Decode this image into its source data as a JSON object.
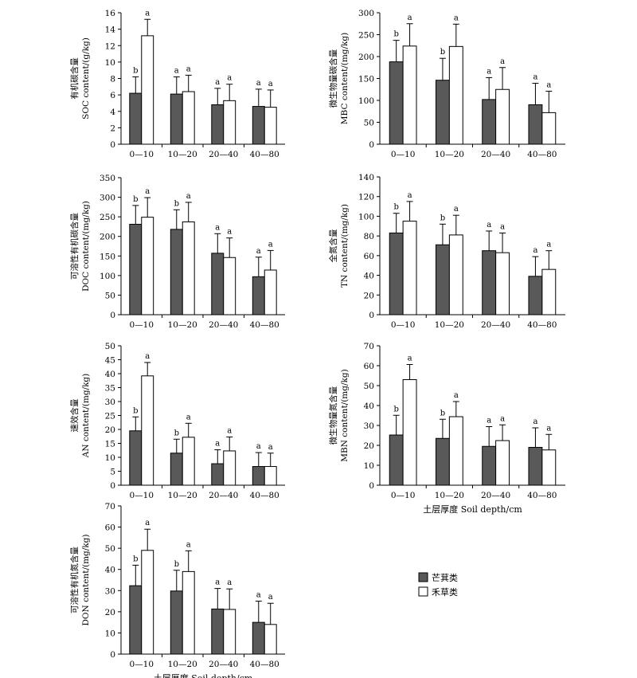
{
  "colors": {
    "dark": "#595959",
    "light": "#ffffff",
    "stroke": "#000000"
  },
  "legend": [
    {
      "label": "芒萁类",
      "color": "#595959"
    },
    {
      "label": "禾草类",
      "color": "#ffffff"
    }
  ],
  "chart_data": [
    {
      "type": "bar",
      "ylabel_cn": "有机碳含量",
      "ylabel_en": "SOC content/(g/kg)",
      "xlabel": "",
      "ylim": [
        0,
        16
      ],
      "yticks": [
        0,
        2,
        4,
        6,
        8,
        10,
        12,
        14,
        16
      ],
      "categories": [
        "0—10",
        "10—20",
        "20—40",
        "40—80"
      ],
      "series": [
        {
          "name": "芒萁类",
          "values": [
            6.2,
            6.1,
            4.8,
            4.6
          ],
          "errors": [
            2.0,
            2.1,
            2.0,
            2.1
          ],
          "letters": [
            "b",
            "a",
            "a",
            "a"
          ]
        },
        {
          "name": "禾草类",
          "values": [
            13.2,
            6.4,
            5.3,
            4.5
          ],
          "errors": [
            2.0,
            2.0,
            2.0,
            2.1
          ],
          "letters": [
            "a",
            "a",
            "a",
            "a"
          ]
        }
      ]
    },
    {
      "type": "bar",
      "ylabel_cn": "微生物量碳含量",
      "ylabel_en": "MBC content/(mg/kg)",
      "xlabel": "",
      "ylim": [
        0,
        300
      ],
      "yticks": [
        0,
        50,
        100,
        150,
        200,
        250,
        300
      ],
      "categories": [
        "0—10",
        "10—20",
        "20—40",
        "40—80"
      ],
      "series": [
        {
          "name": "芒萁类",
          "values": [
            188,
            146,
            102,
            90
          ],
          "errors": [
            49,
            50,
            50,
            49
          ],
          "letters": [
            "b",
            "b",
            "a",
            "a"
          ]
        },
        {
          "name": "禾草类",
          "values": [
            224,
            223,
            125,
            72
          ],
          "errors": [
            51,
            51,
            50,
            49
          ],
          "letters": [
            "a",
            "a",
            "a",
            "a"
          ]
        }
      ]
    },
    {
      "type": "bar",
      "ylabel_cn": "可溶性有机碳含量",
      "ylabel_en": "DOC content/(mg/kg)",
      "xlabel": "",
      "ylim": [
        0,
        350
      ],
      "yticks": [
        0,
        50,
        100,
        150,
        200,
        250,
        300,
        350
      ],
      "categories": [
        "0—10",
        "10—20",
        "20—40",
        "40—80"
      ],
      "series": [
        {
          "name": "芒萁类",
          "values": [
            231,
            218,
            157,
            97
          ],
          "errors": [
            48,
            50,
            50,
            50
          ],
          "letters": [
            "b",
            "b",
            "a",
            "a"
          ]
        },
        {
          "name": "禾草类",
          "values": [
            249,
            237,
            146,
            114
          ],
          "errors": [
            50,
            50,
            50,
            50
          ],
          "letters": [
            "a",
            "a",
            "a",
            "a"
          ]
        }
      ]
    },
    {
      "type": "bar",
      "ylabel_cn": "全氮含量",
      "ylabel_en": "TN content/(mg/kg)",
      "xlabel": "",
      "ylim": [
        0,
        140
      ],
      "yticks": [
        0,
        20,
        40,
        60,
        80,
        100,
        120,
        140
      ],
      "categories": [
        "0—10",
        "10—20",
        "20—40",
        "40—80"
      ],
      "series": [
        {
          "name": "芒萁类",
          "values": [
            83,
            71,
            65,
            39
          ],
          "errors": [
            20,
            21,
            20,
            20
          ],
          "letters": [
            "b",
            "b",
            "a",
            "a"
          ]
        },
        {
          "name": "禾草类",
          "values": [
            95,
            81,
            63,
            46
          ],
          "errors": [
            20,
            20,
            20,
            19
          ],
          "letters": [
            "a",
            "a",
            "a",
            "a"
          ]
        }
      ]
    },
    {
      "type": "bar",
      "ylabel_cn": "速效含量",
      "ylabel_en": "AN content/(mg/kg)",
      "xlabel": "",
      "ylim": [
        0,
        50
      ],
      "yticks": [
        0,
        5,
        10,
        15,
        20,
        25,
        30,
        35,
        40,
        45,
        50
      ],
      "categories": [
        "0—10",
        "10—20",
        "20—40",
        "40—80"
      ],
      "series": [
        {
          "name": "芒萁类",
          "values": [
            19.5,
            11.5,
            7.7,
            6.7
          ],
          "errors": [
            5.0,
            5.0,
            5.0,
            5.0
          ],
          "letters": [
            "b",
            "b",
            "a",
            "a"
          ]
        },
        {
          "name": "禾草类",
          "values": [
            39.2,
            17.2,
            12.3,
            6.7
          ],
          "errors": [
            4.8,
            5.0,
            5.0,
            4.8
          ],
          "letters": [
            "a",
            "a",
            "a",
            "a"
          ]
        }
      ]
    },
    {
      "type": "bar",
      "ylabel_cn": "微生物量氮含量",
      "ylabel_en": "MBN content/(mg/kg)",
      "xlabel": "土层厚度 Soil depth/cm",
      "ylim": [
        0,
        70
      ],
      "yticks": [
        0,
        10,
        20,
        30,
        40,
        50,
        60,
        70
      ],
      "categories": [
        "0—10",
        "10—20",
        "20—40",
        "40—80"
      ],
      "series": [
        {
          "name": "芒萁类",
          "values": [
            25.2,
            23.5,
            19.5,
            19.0
          ],
          "errors": [
            9.9,
            9.6,
            9.9,
            9.8
          ],
          "letters": [
            "b",
            "b",
            "a",
            "a"
          ]
        },
        {
          "name": "禾草类",
          "values": [
            53.0,
            34.4,
            22.4,
            17.7
          ],
          "errors": [
            7.6,
            7.6,
            7.9,
            7.8
          ],
          "letters": [
            "a",
            "a",
            "a",
            "a"
          ]
        }
      ]
    },
    {
      "type": "bar",
      "ylabel_cn": "可溶性有机氮含量",
      "ylabel_en": "DON content/(mg/kg)",
      "xlabel": "土层厚度 Soil depth/cm",
      "ylim": [
        0,
        70
      ],
      "yticks": [
        0,
        10,
        20,
        30,
        40,
        50,
        60,
        70
      ],
      "categories": [
        "0—10",
        "10—20",
        "20—40",
        "40—80"
      ],
      "series": [
        {
          "name": "芒萁类",
          "values": [
            32.3,
            29.8,
            21.3,
            15.0
          ],
          "errors": [
            9.7,
            9.8,
            9.7,
            10.0
          ],
          "letters": [
            "b",
            "b",
            "a",
            "a"
          ]
        },
        {
          "name": "禾草类",
          "values": [
            49.0,
            39.0,
            21.1,
            14.0
          ],
          "errors": [
            10.0,
            9.8,
            9.7,
            10.0
          ],
          "letters": [
            "a",
            "a",
            "a",
            "a"
          ]
        }
      ]
    }
  ]
}
